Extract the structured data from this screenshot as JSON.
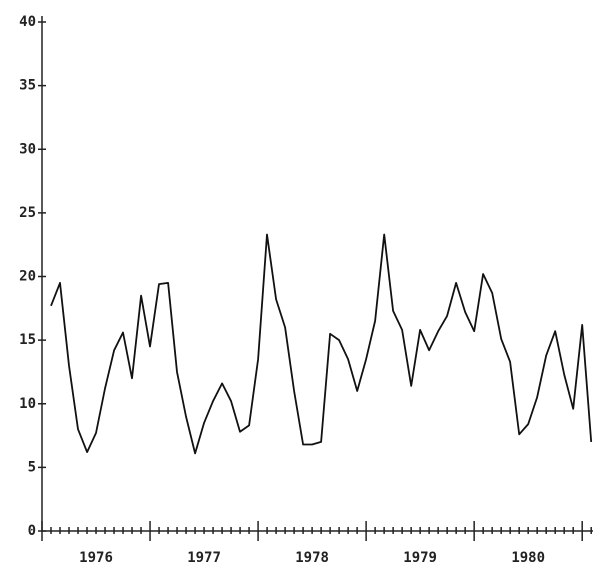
{
  "chart_data": {
    "type": "line",
    "x": [
      1976.083,
      1976.167,
      1976.25,
      1976.333,
      1976.417,
      1976.5,
      1976.583,
      1976.667,
      1976.75,
      1976.833,
      1976.917,
      1977,
      1977.083,
      1977.167,
      1977.25,
      1977.333,
      1977.417,
      1977.5,
      1977.583,
      1977.667,
      1977.75,
      1977.833,
      1977.917,
      1978,
      1978.083,
      1978.167,
      1978.25,
      1978.333,
      1978.417,
      1978.5,
      1978.583,
      1978.667,
      1978.75,
      1978.833,
      1978.917,
      1979,
      1979.083,
      1979.167,
      1979.25,
      1979.333,
      1979.417,
      1979.5,
      1979.583,
      1979.667,
      1979.75,
      1979.833,
      1979.917,
      1980,
      1980.083,
      1980.167,
      1980.25,
      1980.333,
      1980.417,
      1980.5,
      1980.583,
      1980.667,
      1980.75,
      1980.833,
      1980.917,
      1981,
      1981.083
    ],
    "series": [
      {
        "color": "#111111",
        "values": [
          17.7,
          19.5,
          13,
          8,
          6.2,
          7.7,
          11.2,
          14.2,
          15.6,
          12,
          18.5,
          14.5,
          19.4,
          19.5,
          12.5,
          9,
          6.1,
          8.5,
          10.2,
          11.6,
          10.2,
          7.8,
          8.3,
          13.5,
          23.3,
          18.2,
          16,
          11,
          6.8,
          6.8,
          7,
          15.5,
          15,
          13.5,
          11,
          13.5,
          16.5,
          23.3,
          17.3,
          15.8,
          11.4,
          15.8,
          14.2,
          15.7,
          16.9,
          19.5,
          17.2,
          15.7,
          20.2,
          18.7,
          15.1,
          13.3,
          7.6,
          8.4,
          10.5,
          13.8,
          15.7,
          12.3,
          9.6,
          16.2,
          7
        ]
      }
    ],
    "xlim": [
      1976,
      1981.1
    ],
    "xticks": [
      {
        "value": 1976.5,
        "label": "1976"
      },
      {
        "value": 1977.5,
        "label": "1977"
      },
      {
        "value": 1978.5,
        "label": "1978"
      },
      {
        "value": 1979.5,
        "label": "1979"
      },
      {
        "value": 1980.5,
        "label": "1980"
      }
    ],
    "ylim": [
      0,
      40
    ],
    "yticks": [
      0,
      5,
      10,
      15,
      20,
      25,
      30,
      35,
      40
    ],
    "grid": false
  }
}
